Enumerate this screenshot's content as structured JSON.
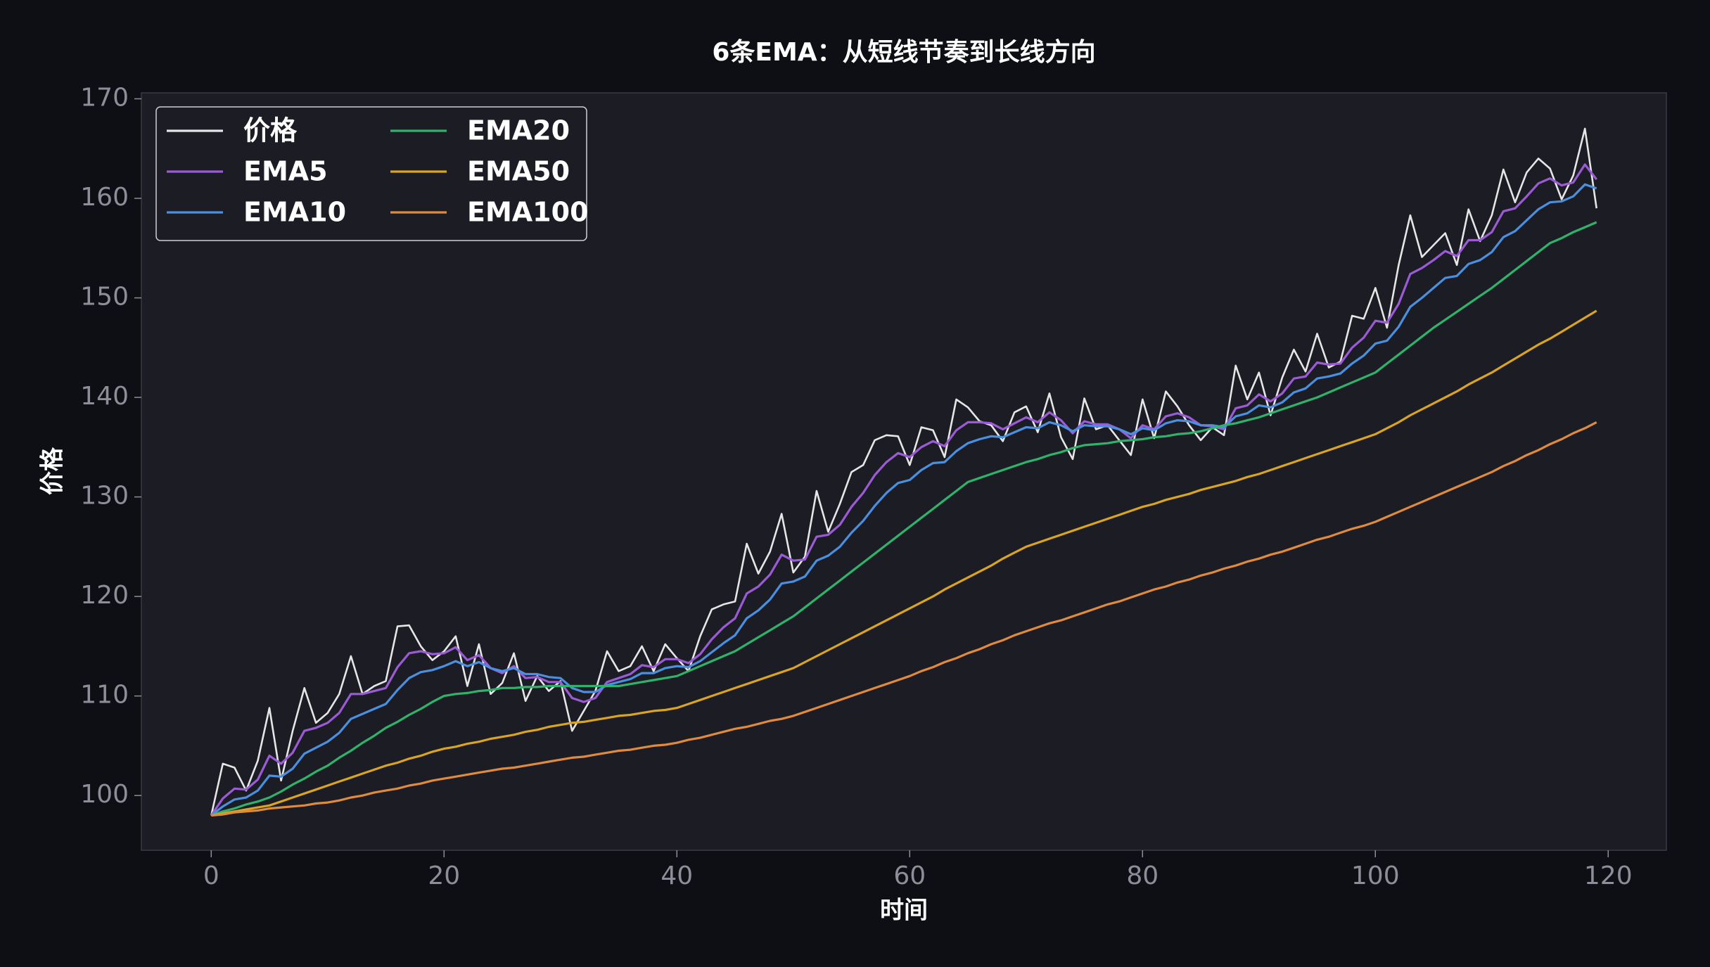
{
  "chart_data": {
    "type": "line",
    "title": "6条EMA：从短线节奏到长线方向",
    "xlabel": "时间",
    "ylabel": "价格",
    "x": [
      0,
      1,
      2,
      3,
      4,
      5,
      6,
      7,
      8,
      9,
      10,
      11,
      12,
      13,
      14,
      15,
      16,
      17,
      18,
      19,
      20,
      21,
      22,
      23,
      24,
      25,
      26,
      27,
      28,
      29,
      30,
      31,
      32,
      33,
      34,
      35,
      36,
      37,
      38,
      39,
      40,
      41,
      42,
      43,
      44,
      45,
      46,
      47,
      48,
      49,
      50,
      51,
      52,
      53,
      54,
      55,
      56,
      57,
      58,
      59,
      60,
      61,
      62,
      63,
      64,
      65,
      66,
      67,
      68,
      69,
      70,
      71,
      72,
      73,
      74,
      75,
      76,
      77,
      78,
      79,
      80,
      81,
      82,
      83,
      84,
      85,
      86,
      87,
      88,
      89,
      90,
      91,
      92,
      93,
      94,
      95,
      96,
      97,
      98,
      99,
      100,
      101,
      102,
      103,
      104,
      105,
      106,
      107,
      108,
      109,
      110,
      111,
      112,
      113,
      114,
      115,
      116,
      117,
      118,
      119
    ],
    "series": [
      {
        "name": "价格",
        "color": "#e6e6e6",
        "values": [
          98,
          103.2,
          102.8,
          100.5,
          103.5,
          108.8,
          101.5,
          106.5,
          110.8,
          107.3,
          108.3,
          110.2,
          114,
          110.2,
          111,
          111.5,
          117,
          117.1,
          115,
          113.6,
          114.5,
          116,
          111,
          115.2,
          110.2,
          111.3,
          114.3,
          109.5,
          112,
          110.5,
          111.5,
          106.5,
          108.5,
          110.5,
          114.5,
          112.5,
          113,
          115,
          112.5,
          115.2,
          113.8,
          112.5,
          116,
          118.7,
          119.2,
          119.5,
          125.3,
          122.3,
          124.5,
          128.3,
          122.4,
          124,
          130.6,
          126.5,
          129.3,
          132.5,
          133.2,
          135.7,
          136.2,
          136.1,
          133.2,
          137,
          136.7,
          134,
          139.8,
          139,
          137.6,
          137.2,
          135.6,
          138.5,
          139.1,
          136.5,
          140.4,
          136,
          133.8,
          139.9,
          136.8,
          137.2,
          135.7,
          134.2,
          139.8,
          135.9,
          140.6,
          139.1,
          137.2,
          135.7,
          137,
          136.2,
          143.2,
          139.8,
          142.5,
          138.2,
          142,
          144.8,
          142.6,
          146.4,
          143,
          143.6,
          148.2,
          147.9,
          151,
          147,
          153.3,
          158.3,
          154.1,
          155.3,
          156.5,
          153.3,
          158.9,
          155.7,
          158.3,
          162.9,
          159.6,
          162.6,
          164,
          163,
          159.9,
          162.3,
          167,
          159
        ]
      },
      {
        "name": "EMA5",
        "color": "#9b5bd4",
        "values": [
          98,
          99.7,
          100.7,
          100.6,
          101.6,
          104,
          103.2,
          104.3,
          106.5,
          106.8,
          107.3,
          108.3,
          110.2,
          110.2,
          110.5,
          110.8,
          112.9,
          114.3,
          114.5,
          114.2,
          114.3,
          114.9,
          113.6,
          114.1,
          112.8,
          112.3,
          113,
          111.8,
          111.9,
          111.4,
          111.4,
          109.8,
          109.4,
          109.8,
          111.4,
          111.8,
          112.2,
          113.1,
          112.9,
          113.7,
          113.7,
          113.3,
          114.2,
          115.7,
          116.9,
          117.8,
          120.3,
          121,
          122.2,
          124.2,
          123.6,
          123.7,
          126,
          126.2,
          127.2,
          129,
          130.4,
          132.2,
          133.5,
          134.4,
          134,
          135,
          135.6,
          135.1,
          136.7,
          137.5,
          137.5,
          137.4,
          136.8,
          137.4,
          138,
          137.5,
          138.5,
          137.7,
          136.4,
          137.6,
          137.3,
          137.3,
          136.8,
          135.9,
          137.2,
          136.8,
          138.1,
          138.4,
          138,
          137.2,
          137.1,
          136.8,
          138.9,
          139.2,
          140.3,
          139.6,
          140.4,
          141.9,
          142.1,
          143.5,
          143.3,
          143.4,
          145,
          146,
          147.7,
          147.5,
          149.4,
          152.4,
          153,
          153.8,
          154.7,
          154.2,
          155.8,
          155.8,
          156.6,
          158.7,
          159,
          160.2,
          161.5,
          162,
          161.3,
          161.6,
          163.4,
          161.9
        ]
      },
      {
        "name": "EMA10",
        "color": "#4a8fe0",
        "values": [
          98,
          98.9,
          99.6,
          99.8,
          100.5,
          102,
          101.9,
          102.7,
          104.2,
          104.8,
          105.4,
          106.3,
          107.7,
          108.2,
          108.7,
          109.2,
          110.6,
          111.8,
          112.4,
          112.6,
          113,
          113.5,
          113,
          113.4,
          112.8,
          112.5,
          112.8,
          112.2,
          112.2,
          111.9,
          111.8,
          110.8,
          110.4,
          110.4,
          111.1,
          111.4,
          111.7,
          112.3,
          112.3,
          112.8,
          113,
          112.9,
          113.5,
          114.4,
          115.3,
          116.1,
          117.8,
          118.6,
          119.7,
          121.3,
          121.5,
          122,
          123.6,
          124.1,
          125,
          126.4,
          127.6,
          129.1,
          130.4,
          131.4,
          131.7,
          132.7,
          133.4,
          133.5,
          134.6,
          135.4,
          135.8,
          136.1,
          136,
          136.5,
          137,
          136.9,
          137.5,
          137.2,
          136.6,
          137.2,
          137.1,
          137.1,
          136.8,
          136.3,
          136.9,
          136.7,
          137.4,
          137.7,
          137.6,
          137.2,
          137.2,
          137,
          138.1,
          138.4,
          139.2,
          139,
          139.5,
          140.5,
          140.9,
          141.9,
          142.1,
          142.4,
          143.4,
          144.2,
          145.4,
          145.7,
          147.1,
          149.1,
          150,
          151,
          152,
          152.2,
          153.4,
          153.8,
          154.6,
          156.1,
          156.7,
          157.8,
          158.9,
          159.6,
          159.7,
          160.2,
          161.4,
          161
        ]
      },
      {
        "name": "EMA20",
        "color": "#2fb36a",
        "values": [
          98,
          98.4,
          98.7,
          99.1,
          99.4,
          99.8,
          100.4,
          101.1,
          101.7,
          102.4,
          103,
          103.8,
          104.5,
          105.3,
          106,
          106.8,
          107.4,
          108.1,
          108.7,
          109.4,
          110,
          110.2,
          110.3,
          110.5,
          110.6,
          110.8,
          110.8,
          110.9,
          110.9,
          111,
          111,
          111,
          111,
          111,
          111,
          111,
          111.2,
          111.4,
          111.6,
          111.8,
          112,
          112.5,
          113,
          113.5,
          114,
          114.5,
          115.2,
          115.9,
          116.6,
          117.3,
          118,
          118.9,
          119.8,
          120.7,
          121.6,
          122.5,
          123.4,
          124.3,
          125.2,
          126.1,
          127,
          127.9,
          128.8,
          129.7,
          130.6,
          131.5,
          131.9,
          132.3,
          132.7,
          133.1,
          133.5,
          133.8,
          134.2,
          134.5,
          134.9,
          135.2,
          135.3,
          135.4,
          135.6,
          135.7,
          135.8,
          136,
          136.1,
          136.3,
          136.4,
          136.6,
          136.9,
          137.2,
          137.4,
          137.7,
          138,
          138.4,
          138.8,
          139.2,
          139.6,
          140,
          140.5,
          141,
          141.5,
          142,
          142.5,
          143.4,
          144.3,
          145.2,
          146.1,
          147,
          147.8,
          148.6,
          149.4,
          150.2,
          151,
          151.9,
          152.8,
          153.7,
          154.6,
          155.5,
          156,
          156.6,
          157.1,
          157.6
        ]
      },
      {
        "name": "EMA50",
        "color": "#d9a421",
        "values": [
          98,
          98.2,
          98.4,
          98.6,
          98.8,
          99,
          99.4,
          99.8,
          100.2,
          100.6,
          101,
          101.4,
          101.8,
          102.2,
          102.6,
          103,
          103.3,
          103.7,
          104,
          104.4,
          104.7,
          104.9,
          105.2,
          105.4,
          105.7,
          105.9,
          106.1,
          106.4,
          106.6,
          106.9,
          107.1,
          107.3,
          107.4,
          107.6,
          107.8,
          108,
          108.1,
          108.3,
          108.5,
          108.6,
          108.8,
          109.2,
          109.6,
          110,
          110.4,
          110.8,
          111.2,
          111.6,
          112,
          112.4,
          112.8,
          113.4,
          114,
          114.6,
          115.2,
          115.8,
          116.4,
          117,
          117.6,
          118.2,
          118.8,
          119.4,
          120,
          120.7,
          121.3,
          121.9,
          122.5,
          123.1,
          123.8,
          124.4,
          125,
          125.4,
          125.8,
          126.2,
          126.6,
          127,
          127.4,
          127.8,
          128.2,
          128.6,
          129,
          129.3,
          129.7,
          130,
          130.3,
          130.7,
          131,
          131.3,
          131.6,
          132,
          132.3,
          132.7,
          133.1,
          133.5,
          133.9,
          134.3,
          134.7,
          135.1,
          135.5,
          135.9,
          136.3,
          136.9,
          137.5,
          138.2,
          138.8,
          139.4,
          140,
          140.6,
          141.3,
          141.9,
          142.5,
          143.2,
          143.9,
          144.6,
          145.3,
          145.9,
          146.6,
          147.3,
          148,
          148.7
        ]
      },
      {
        "name": "EMA100",
        "color": "#e08a3e",
        "values": [
          98,
          98.1,
          98.3,
          98.4,
          98.5,
          98.7,
          98.8,
          98.9,
          99,
          99.2,
          99.3,
          99.5,
          99.8,
          100,
          100.3,
          100.5,
          100.7,
          101,
          101.2,
          101.5,
          101.7,
          101.9,
          102.1,
          102.3,
          102.5,
          102.7,
          102.8,
          103,
          103.2,
          103.4,
          103.6,
          103.8,
          103.9,
          104.1,
          104.3,
          104.5,
          104.6,
          104.8,
          105,
          105.1,
          105.3,
          105.6,
          105.8,
          106.1,
          106.4,
          106.7,
          106.9,
          107.2,
          107.5,
          107.7,
          108,
          108.4,
          108.8,
          109.2,
          109.6,
          110,
          110.4,
          110.8,
          111.2,
          111.6,
          112,
          112.5,
          112.9,
          113.4,
          113.8,
          114.3,
          114.7,
          115.2,
          115.6,
          116.1,
          116.5,
          116.9,
          117.3,
          117.6,
          118,
          118.4,
          118.8,
          119.2,
          119.5,
          119.9,
          120.3,
          120.7,
          121,
          121.4,
          121.7,
          122.1,
          122.4,
          122.8,
          123.1,
          123.5,
          123.8,
          124.2,
          124.5,
          124.9,
          125.3,
          125.7,
          126,
          126.4,
          126.8,
          127.1,
          127.5,
          128,
          128.5,
          129,
          129.5,
          130,
          130.5,
          131,
          131.5,
          132,
          132.5,
          133.1,
          133.6,
          134.2,
          134.7,
          135.3,
          135.8,
          136.4,
          136.9,
          137.5
        ]
      }
    ],
    "xlim": [
      -6,
      125
    ],
    "ylim": [
      94.5,
      170.6
    ],
    "xticks": [
      0,
      20,
      40,
      60,
      80,
      100,
      120
    ],
    "yticks": [
      100,
      110,
      120,
      130,
      140,
      150,
      160,
      170
    ],
    "legend": "upper left",
    "legend_columns": 2,
    "grid": false
  }
}
